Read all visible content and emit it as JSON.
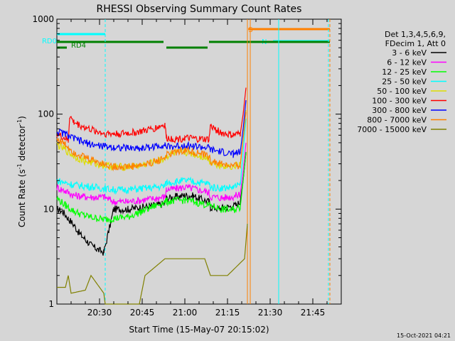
{
  "chart_data": {
    "type": "line",
    "title": "RHESSI Observing Summary Count Rates",
    "xlabel": "Start Time (15-May-07 20:15:02)",
    "ylabel": "Count Rate (s",
    "ylabel_sup": "-1",
    "ylabel_mid": " detector",
    "ylabel_end": ")",
    "yscale": "log",
    "ylim": [
      1,
      1000
    ],
    "y_ticks": [
      {
        "value": 1,
        "label": "1"
      },
      {
        "value": 10,
        "label": "10"
      },
      {
        "value": 100,
        "label": "100"
      },
      {
        "value": 1000,
        "label": "1000"
      }
    ],
    "x_range_min": [
      0,
      100
    ],
    "x_ticks": [
      {
        "value": 15,
        "label": "20:30"
      },
      {
        "value": 30,
        "label": "20:45"
      },
      {
        "value": 45,
        "label": "21:00"
      },
      {
        "value": 60,
        "label": "21:15"
      },
      {
        "value": 75,
        "label": "21:30"
      },
      {
        "value": 90,
        "label": "21:45"
      }
    ],
    "legend_title": [
      "Det 1,3,4,5,6,9,",
      "FDecim 1, Att 0"
    ],
    "series": [
      {
        "name": "3 - 6 keV",
        "color": "#000000",
        "x": [
          0,
          2,
          4,
          6,
          8,
          10,
          12,
          14,
          16.5,
          20,
          25,
          30,
          35,
          38,
          38.5,
          42,
          45,
          48,
          50,
          53.5,
          54,
          57,
          60,
          63,
          64.5,
          65.5,
          66.5
        ],
        "y": [
          10,
          9.5,
          8,
          6.8,
          5.5,
          4.8,
          4.2,
          3.8,
          3.5,
          10,
          10,
          10.5,
          11,
          11.5,
          13,
          13.5,
          14,
          13.8,
          13,
          12,
          10.5,
          10.2,
          10.5,
          11,
          12,
          20,
          40
        ]
      },
      {
        "name": "6 - 12 keV",
        "color": "#ff00ff",
        "x": [
          0,
          3,
          6,
          10,
          14,
          16.5,
          20,
          25,
          30,
          35,
          38,
          38.5,
          42,
          45,
          48,
          53.5,
          54,
          58,
          62,
          64.5,
          65.5,
          66.5
        ],
        "y": [
          17,
          15.5,
          14,
          13.5,
          13.3,
          13.5,
          12,
          12,
          12.5,
          13,
          13.5,
          16,
          16.5,
          17,
          16.5,
          15,
          13.5,
          13.2,
          13.5,
          14.5,
          25,
          50
        ]
      },
      {
        "name": "12 - 25 keV",
        "color": "#00ff00",
        "x": [
          0,
          3,
          6,
          10,
          14,
          16.5,
          20,
          25,
          30,
          35,
          38.5,
          42,
          45,
          48,
          53.5,
          58,
          62,
          64.5,
          65.5,
          66.5
        ],
        "y": [
          13,
          11,
          9.5,
          8.5,
          8,
          7.8,
          8,
          8.3,
          9.5,
          11,
          12,
          12.3,
          12.5,
          12,
          11,
          10,
          9.8,
          10.5,
          20,
          40
        ]
      },
      {
        "name": "25 - 50 keV",
        "color": "#00ffff",
        "x": [
          0,
          3,
          6,
          10,
          14,
          16.5,
          20,
          25,
          30,
          35,
          38,
          38.5,
          42,
          45,
          48,
          53.5,
          54,
          58,
          62,
          64.5,
          65.5,
          66.5
        ],
        "y": [
          20,
          19,
          18,
          17.5,
          17,
          16.5,
          16,
          16,
          16.5,
          17,
          17.5,
          19,
          19.5,
          20,
          19.5,
          18.5,
          17,
          16.8,
          17,
          18,
          40,
          90
        ]
      },
      {
        "name": "50 - 100 keV",
        "color": "#dddd00",
        "x": [
          0,
          3,
          6,
          10,
          14,
          16.5,
          20,
          25,
          30,
          35,
          38,
          38.5,
          42,
          45,
          48,
          53.5,
          54,
          58,
          62,
          64.5,
          65.5,
          66.5
        ],
        "y": [
          48,
          42,
          36,
          32,
          30,
          29,
          28,
          28,
          29,
          32,
          34,
          36,
          39,
          40,
          38,
          34,
          31,
          29,
          28,
          30,
          55,
          110
        ]
      },
      {
        "name": "100 - 300 keV",
        "color": "#ff0000",
        "x": [
          0,
          3,
          4,
          4.5,
          6,
          10,
          14,
          16.5,
          20,
          25,
          30,
          35,
          38,
          38.5,
          42,
          45,
          48,
          53.5,
          54,
          58,
          62,
          64.5,
          65.5,
          66.5
        ],
        "y": [
          62,
          55,
          52,
          95,
          82,
          72,
          66,
          63,
          62,
          63,
          66,
          72,
          78,
          56,
          55,
          56,
          55,
          54,
          75,
          63,
          60,
          62,
          100,
          190
        ]
      },
      {
        "name": "300 - 800 keV",
        "color": "#0000ff",
        "x": [
          0,
          3,
          6,
          10,
          14,
          16.5,
          20,
          25,
          30,
          35,
          38,
          38.5,
          42,
          45,
          48,
          53.5,
          54,
          58,
          62,
          64.5,
          65.5,
          66.5
        ],
        "y": [
          66,
          62,
          55,
          50,
          47,
          46,
          45,
          44,
          44,
          46,
          48,
          45,
          46,
          47,
          46,
          44,
          42,
          40,
          38,
          40,
          70,
          140
        ]
      },
      {
        "name": "800 - 7000 keV",
        "color": "#ff8000",
        "x": [
          0,
          3,
          6,
          10,
          14,
          16.5,
          20,
          25,
          30,
          35,
          38,
          38.5,
          42,
          45,
          48,
          53.5,
          54,
          58,
          62,
          64.5,
          65.5,
          66.5
        ],
        "y": [
          55,
          48,
          40,
          35,
          32,
          30,
          28,
          28,
          29,
          32,
          35,
          37,
          40,
          42,
          40,
          36,
          32,
          30,
          28,
          29,
          55,
          105
        ]
      },
      {
        "name": "7000 - 15000 keV",
        "color": "#808000",
        "x": [
          0,
          3,
          4,
          5,
          10,
          12,
          16.5,
          17,
          24,
          29,
          31,
          38,
          45,
          52,
          54,
          60,
          66,
          67
        ],
        "y": [
          1.5,
          1.5,
          2,
          1.3,
          1.4,
          2,
          1.3,
          1,
          1,
          1,
          2,
          3,
          3,
          3,
          2,
          2,
          3,
          7
        ]
      }
    ],
    "state_bars": [
      {
        "label": "RD0",
        "color": "#00ffff",
        "segments": [
          [
            0,
            17
          ]
        ]
      },
      {
        "label": "N",
        "color": "#00ffff",
        "segments": [
          [
            76,
            96
          ]
        ]
      },
      {
        "label": "",
        "color": "#008000",
        "segments": [
          [
            0,
            37.5
          ],
          [
            53.5,
            96
          ]
        ]
      },
      {
        "label": "",
        "color": "#008000",
        "segments": [
          [
            38.5,
            53
          ]
        ]
      },
      {
        "label": "RD4",
        "color": "#008000",
        "segments": [
          [
            0,
            3.5
          ]
        ]
      },
      {
        "label": "S",
        "color": "#ff8000",
        "segments": [
          [
            67.3,
            96
          ]
        ]
      }
    ],
    "vlines": [
      {
        "x": 17,
        "color": "#00ffff",
        "dashed": true
      },
      {
        "x": 67,
        "color": "#ff8000",
        "dashed": false
      },
      {
        "x": 68,
        "color": "#ff8000",
        "dashed": false
      },
      {
        "x": 78,
        "color": "#00ffff",
        "dashed": false
      },
      {
        "x": 95.5,
        "color": "#00ffff",
        "dashed": true
      },
      {
        "x": 96,
        "color": "#ff8000",
        "dashed": true
      }
    ],
    "grid": false,
    "legend_position": "right",
    "footer_date": "15-Oct-2021 04:21"
  }
}
